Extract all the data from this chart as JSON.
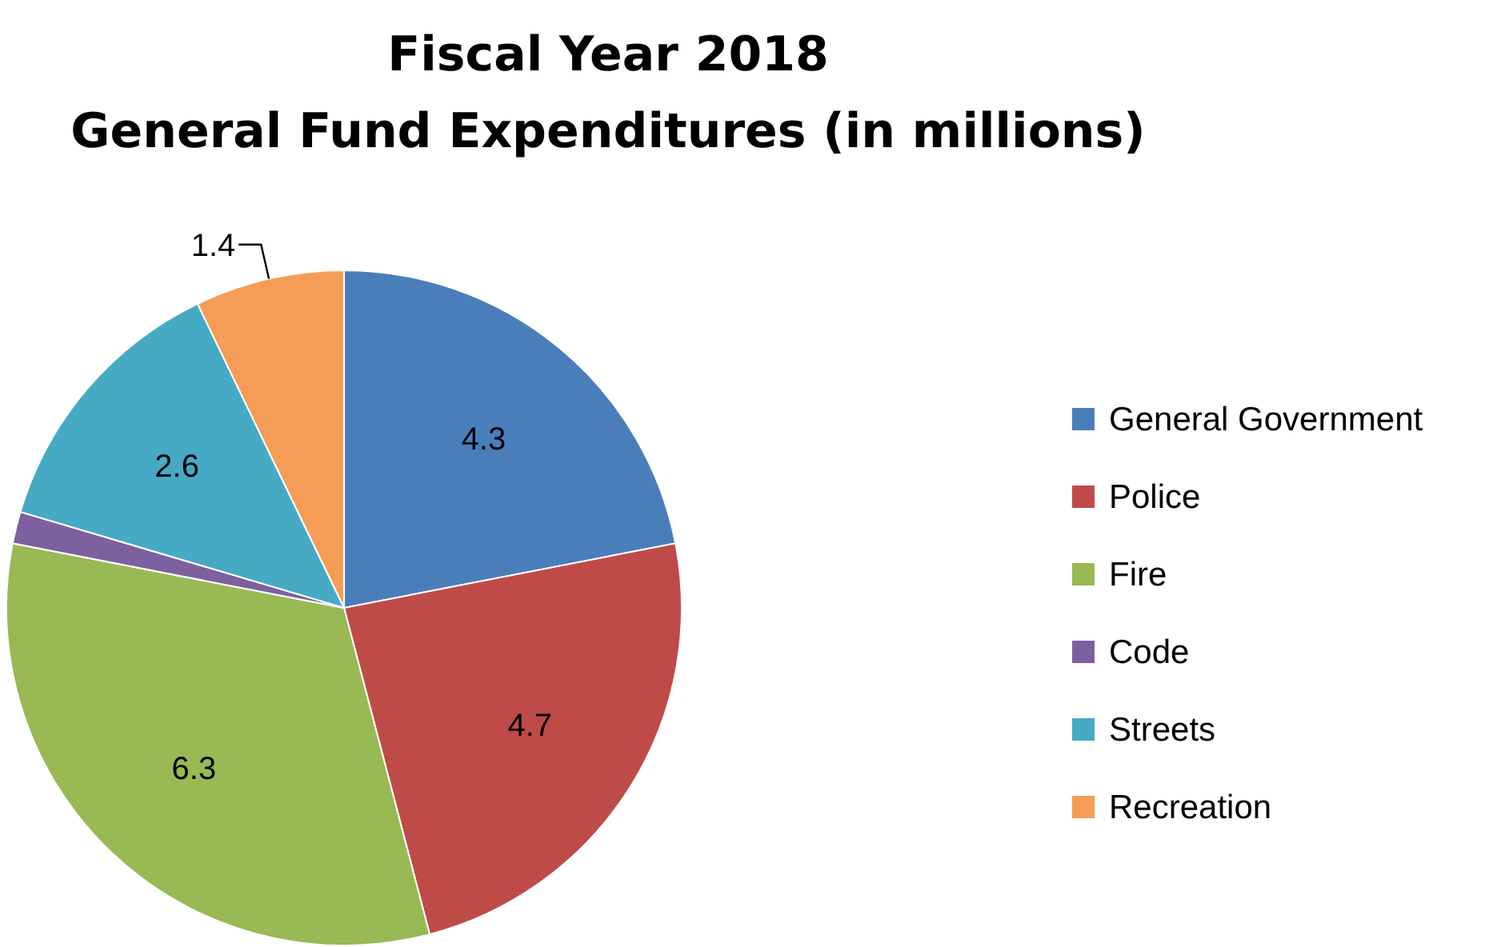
{
  "chart_data": {
    "type": "pie",
    "title": "Fiscal Year 2018",
    "subtitle": "General Fund Expenditures (in millions)",
    "categories": [
      "General Government",
      "Police",
      "Fire",
      "Code",
      "Streets",
      "Recreation"
    ],
    "values": [
      4.3,
      4.7,
      6.3,
      0.3,
      2.6,
      1.4
    ],
    "value_labels": [
      "4.3",
      "4.7",
      "6.3",
      null,
      "2.6",
      "1.4"
    ],
    "colors": [
      "#4a7ebb",
      "#be4b48",
      "#98b954",
      "#7d60a0",
      "#46aac5",
      "#f59d56"
    ],
    "legend": "right"
  }
}
